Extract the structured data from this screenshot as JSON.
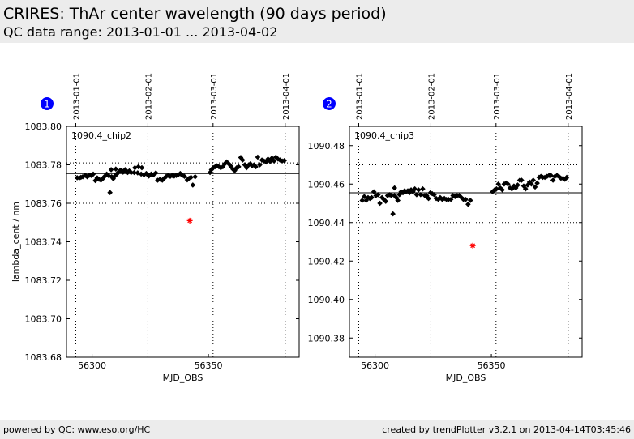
{
  "header": {
    "title": "CRIRES: ThAr center wavelength (90 days period)",
    "subtitle": "QC data range: 2013-01-01 ... 2013-04-02"
  },
  "footer": {
    "left": "powered by QC: www.eso.org/HC",
    "right": "created by trendPlotter v3.2.1 on 2013-04-14T03:45:46"
  },
  "chart_data": [
    {
      "type": "scatter",
      "badge": "1",
      "panel_label": "1090.4_chip2",
      "xlabel": "MJD_OBS",
      "ylabel": "lambda_cent / nm",
      "xlim": [
        56289,
        56389
      ],
      "ylim": [
        1083.68,
        1083.8
      ],
      "x_ticks": [
        56300,
        56350
      ],
      "y_ticks": [
        1083.68,
        1083.7,
        1083.72,
        1083.74,
        1083.76,
        1083.78,
        1083.8
      ],
      "y_tick_labels": [
        "1083.68",
        "1083.70",
        "1083.72",
        "1083.74",
        "1083.76",
        "1083.78",
        "1083.80"
      ],
      "date_ticks": [
        {
          "label": "2013-01-01",
          "mjd": 56293
        },
        {
          "label": "2013-02-01",
          "mjd": 56324
        },
        {
          "label": "2013-03-01",
          "mjd": 56352
        },
        {
          "label": "2013-04-01",
          "mjd": 56383
        }
      ],
      "reference_line": 1083.7755,
      "limit_lines": [
        1083.76,
        1083.781
      ],
      "grid": "dotted",
      "series": [
        {
          "marker": "diamond",
          "color": "#000000",
          "points": [
            [
              56293.6,
              1083.7733
            ],
            [
              56294.5,
              1083.7732
            ],
            [
              56295.2,
              1083.7735
            ],
            [
              56296.0,
              1083.7738
            ],
            [
              56297.1,
              1083.7745
            ],
            [
              56297.9,
              1083.7738
            ],
            [
              56298.7,
              1083.7745
            ],
            [
              56299.6,
              1083.7745
            ],
            [
              56300.5,
              1083.7752
            ],
            [
              56301.4,
              1083.7718
            ],
            [
              56302.2,
              1083.7732
            ],
            [
              56303.0,
              1083.7725
            ],
            [
              56303.8,
              1083.772
            ],
            [
              56304.6,
              1083.7728
            ],
            [
              56305.4,
              1083.774
            ],
            [
              56306.3,
              1083.7752
            ],
            [
              56307.0,
              1083.7745
            ],
            [
              56307.7,
              1083.7656
            ],
            [
              56308.4,
              1083.7738
            ],
            [
              56309.1,
              1083.7728
            ],
            [
              56309.8,
              1083.7742
            ],
            [
              56310.5,
              1083.775
            ],
            [
              56311.2,
              1083.776
            ],
            [
              56312.0,
              1083.7768
            ],
            [
              56312.7,
              1083.777
            ],
            [
              56313.3,
              1083.7762
            ],
            [
              56314.0,
              1083.7768
            ],
            [
              56314.6,
              1083.777
            ],
            [
              56315.3,
              1083.776
            ],
            [
              56316.0,
              1083.7768
            ],
            [
              56316.8,
              1083.776
            ],
            [
              56308.2,
              1083.7775
            ],
            [
              56310.2,
              1083.7778
            ],
            [
              56312.2,
              1083.7772
            ],
            [
              56314.2,
              1083.7775
            ],
            [
              56318.4,
              1083.7785
            ],
            [
              56319.9,
              1083.779
            ],
            [
              56321.4,
              1083.7785
            ],
            [
              56318.1,
              1083.776
            ],
            [
              56319.6,
              1083.7758
            ],
            [
              56321.1,
              1083.7752
            ],
            [
              56322.3,
              1083.7748
            ],
            [
              56323.3,
              1083.7755
            ],
            [
              56324.4,
              1083.7742
            ],
            [
              56325.4,
              1083.7752
            ],
            [
              56326.4,
              1083.7748
            ],
            [
              56327.4,
              1083.7758
            ],
            [
              56328.2,
              1083.772
            ],
            [
              56329.2,
              1083.7725
            ],
            [
              56330.2,
              1083.772
            ],
            [
              56331.0,
              1083.773
            ],
            [
              56331.9,
              1083.774
            ],
            [
              56332.8,
              1083.7745
            ],
            [
              56333.6,
              1083.774
            ],
            [
              56334.5,
              1083.7745
            ],
            [
              56335.3,
              1083.7742
            ],
            [
              56336.2,
              1083.7745
            ],
            [
              56337.0,
              1083.7748
            ],
            [
              56337.9,
              1083.7755
            ],
            [
              56338.8,
              1083.7745
            ],
            [
              56339.7,
              1083.774
            ],
            [
              56340.9,
              1083.7722
            ],
            [
              56341.7,
              1083.773
            ],
            [
              56342.5,
              1083.7735
            ],
            [
              56343.3,
              1083.7695
            ],
            [
              56344.3,
              1083.7738
            ],
            [
              56350.7,
              1083.776
            ],
            [
              56351.3,
              1083.7775
            ],
            [
              56352.1,
              1083.7785
            ],
            [
              56352.9,
              1083.779
            ],
            [
              56353.7,
              1083.7795
            ],
            [
              56354.5,
              1083.779
            ],
            [
              56355.3,
              1083.7785
            ],
            [
              56356.2,
              1083.779
            ],
            [
              56357.0,
              1083.7805
            ],
            [
              56357.9,
              1083.7815
            ],
            [
              56358.8,
              1083.7805
            ],
            [
              56359.7,
              1083.7792
            ],
            [
              56360.5,
              1083.7778
            ],
            [
              56361.3,
              1083.777
            ],
            [
              56362.2,
              1083.7785
            ],
            [
              56363.0,
              1083.779
            ],
            [
              56363.9,
              1083.7838
            ],
            [
              56364.7,
              1083.7825
            ],
            [
              56365.6,
              1083.78
            ],
            [
              56366.4,
              1083.7785
            ],
            [
              56367.2,
              1083.7798
            ],
            [
              56368.0,
              1083.7805
            ],
            [
              56368.8,
              1083.7795
            ],
            [
              56369.6,
              1083.78
            ],
            [
              56370.4,
              1083.779
            ],
            [
              56371.2,
              1083.784
            ],
            [
              56372.1,
              1083.78
            ],
            [
              56373.0,
              1083.7825
            ],
            [
              56373.9,
              1083.782
            ],
            [
              56374.8,
              1083.7815
            ],
            [
              56375.6,
              1083.783
            ],
            [
              56376.5,
              1083.7818
            ],
            [
              56377.3,
              1083.7835
            ],
            [
              56378.2,
              1083.782
            ],
            [
              56379.0,
              1083.784
            ],
            [
              56379.9,
              1083.783
            ],
            [
              56380.8,
              1083.7825
            ],
            [
              56381.7,
              1083.782
            ],
            [
              56382.6,
              1083.7822
            ]
          ]
        },
        {
          "marker": "asterisk",
          "color": "#ff0000",
          "points": [
            [
              56342.0,
              1083.751
            ]
          ]
        }
      ]
    },
    {
      "type": "scatter",
      "badge": "2",
      "panel_label": "1090.4_chip3",
      "xlabel": "MJD_OBS",
      "ylabel": "",
      "xlim": [
        56289,
        56389
      ],
      "ylim": [
        1090.37,
        1090.49
      ],
      "x_ticks": [
        56300,
        56350
      ],
      "y_ticks": [
        1090.38,
        1090.4,
        1090.42,
        1090.44,
        1090.46,
        1090.48
      ],
      "y_tick_labels": [
        "1090.38",
        "1090.40",
        "1090.42",
        "1090.44",
        "1090.46",
        "1090.48"
      ],
      "date_ticks": [
        {
          "label": "2013-01-01",
          "mjd": 56293
        },
        {
          "label": "2013-02-01",
          "mjd": 56324
        },
        {
          "label": "2013-03-01",
          "mjd": 56352
        },
        {
          "label": "2013-04-01",
          "mjd": 56383
        }
      ],
      "reference_line": 1090.4555,
      "limit_lines": [
        1090.44,
        1090.47
      ],
      "grid": "dotted",
      "series": [
        {
          "marker": "diamond",
          "color": "#000000",
          "points": [
            [
              56294.5,
              1090.4515
            ],
            [
              56295.4,
              1090.4535
            ],
            [
              56296.2,
              1090.4515
            ],
            [
              56297.0,
              1090.453
            ],
            [
              56297.8,
              1090.4525
            ],
            [
              56298.6,
              1090.453
            ],
            [
              56299.5,
              1090.456
            ],
            [
              56300.4,
              1090.454
            ],
            [
              56301.3,
              1090.4545
            ],
            [
              56302.1,
              1090.45
            ],
            [
              56303.0,
              1090.453
            ],
            [
              56303.8,
              1090.452
            ],
            [
              56304.6,
              1090.451
            ],
            [
              56305.4,
              1090.454
            ],
            [
              56306.2,
              1090.4545
            ],
            [
              56307.0,
              1090.454
            ],
            [
              56307.7,
              1090.4445
            ],
            [
              56308.4,
              1090.454
            ],
            [
              56309.1,
              1090.453
            ],
            [
              56309.8,
              1090.4515
            ],
            [
              56308.4,
              1090.458
            ],
            [
              56310.5,
              1090.4545
            ],
            [
              56311.2,
              1090.456
            ],
            [
              56312.0,
              1090.4555
            ],
            [
              56312.7,
              1090.4565
            ],
            [
              56313.4,
              1090.456
            ],
            [
              56314.1,
              1090.4565
            ],
            [
              56314.8,
              1090.4555
            ],
            [
              56315.5,
              1090.457
            ],
            [
              56316.3,
              1090.456
            ],
            [
              56317.1,
              1090.4575
            ],
            [
              56317.9,
              1090.4545
            ],
            [
              56318.7,
              1090.457
            ],
            [
              56319.6,
              1090.4545
            ],
            [
              56320.5,
              1090.4575
            ],
            [
              56321.4,
              1090.454
            ],
            [
              56322.2,
              1090.454
            ],
            [
              56323.0,
              1090.4525
            ],
            [
              56323.8,
              1090.4555
            ],
            [
              56324.6,
              1090.455
            ],
            [
              56325.4,
              1090.4545
            ],
            [
              56326.3,
              1090.4525
            ],
            [
              56327.2,
              1090.452
            ],
            [
              56328.0,
              1090.453
            ],
            [
              56328.9,
              1090.452
            ],
            [
              56329.8,
              1090.4525
            ],
            [
              56330.7,
              1090.452
            ],
            [
              56331.6,
              1090.452
            ],
            [
              56332.6,
              1090.452
            ],
            [
              56333.5,
              1090.454
            ],
            [
              56334.4,
              1090.4535
            ],
            [
              56335.3,
              1090.454
            ],
            [
              56336.2,
              1090.454
            ],
            [
              56337.1,
              1090.453
            ],
            [
              56338.0,
              1090.452
            ],
            [
              56339.0,
              1090.452
            ],
            [
              56340.0,
              1090.4495
            ],
            [
              56341.0,
              1090.4515
            ],
            [
              56350.5,
              1090.456
            ],
            [
              56351.4,
              1090.457
            ],
            [
              56352.2,
              1090.4575
            ],
            [
              56353.0,
              1090.46
            ],
            [
              56353.8,
              1090.458
            ],
            [
              56354.7,
              1090.457
            ],
            [
              56355.5,
              1090.46
            ],
            [
              56356.3,
              1090.4605
            ],
            [
              56357.1,
              1090.46
            ],
            [
              56358.0,
              1090.458
            ],
            [
              56358.8,
              1090.4575
            ],
            [
              56359.7,
              1090.459
            ],
            [
              56360.5,
              1090.458
            ],
            [
              56361.3,
              1090.4595
            ],
            [
              56362.2,
              1090.462
            ],
            [
              56363.0,
              1090.462
            ],
            [
              56363.9,
              1090.459
            ],
            [
              56364.7,
              1090.4575
            ],
            [
              56365.6,
              1090.4595
            ],
            [
              56366.4,
              1090.461
            ],
            [
              56367.2,
              1090.46
            ],
            [
              56368.0,
              1090.462
            ],
            [
              56368.8,
              1090.4585
            ],
            [
              56369.7,
              1090.4605
            ],
            [
              56370.5,
              1090.4635
            ],
            [
              56371.3,
              1090.464
            ],
            [
              56372.1,
              1090.4635
            ],
            [
              56373.0,
              1090.4635
            ],
            [
              56373.9,
              1090.464
            ],
            [
              56374.8,
              1090.4645
            ],
            [
              56375.6,
              1090.4645
            ],
            [
              56376.5,
              1090.462
            ],
            [
              56377.3,
              1090.464
            ],
            [
              56378.2,
              1090.4645
            ],
            [
              56379.0,
              1090.464
            ],
            [
              56379.9,
              1090.463
            ],
            [
              56380.8,
              1090.463
            ],
            [
              56381.6,
              1090.4625
            ],
            [
              56382.4,
              1090.4635
            ]
          ]
        },
        {
          "marker": "asterisk",
          "color": "#ff0000",
          "points": [
            [
              56342.0,
              1090.428
            ]
          ]
        }
      ]
    }
  ]
}
